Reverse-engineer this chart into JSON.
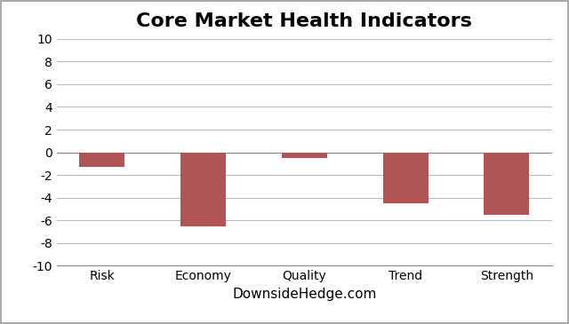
{
  "title": "Core Market Health Indicators",
  "categories": [
    "Risk",
    "Economy",
    "Quality",
    "Trend",
    "Strength"
  ],
  "values": [
    -1.3,
    -6.5,
    -0.5,
    -4.5,
    -5.5
  ],
  "bar_color": "#b05555",
  "ylim": [
    -10,
    10
  ],
  "yticks": [
    -10,
    -8,
    -6,
    -4,
    -2,
    0,
    2,
    4,
    6,
    8,
    10
  ],
  "xlabel": "DownsideHedge.com",
  "title_fontsize": 16,
  "xlabel_fontsize": 11,
  "tick_fontsize": 10,
  "grid_color": "#bbbbbb",
  "background_color": "#ffffff",
  "bar_width": 0.45,
  "border_color": "#aaaaaa"
}
